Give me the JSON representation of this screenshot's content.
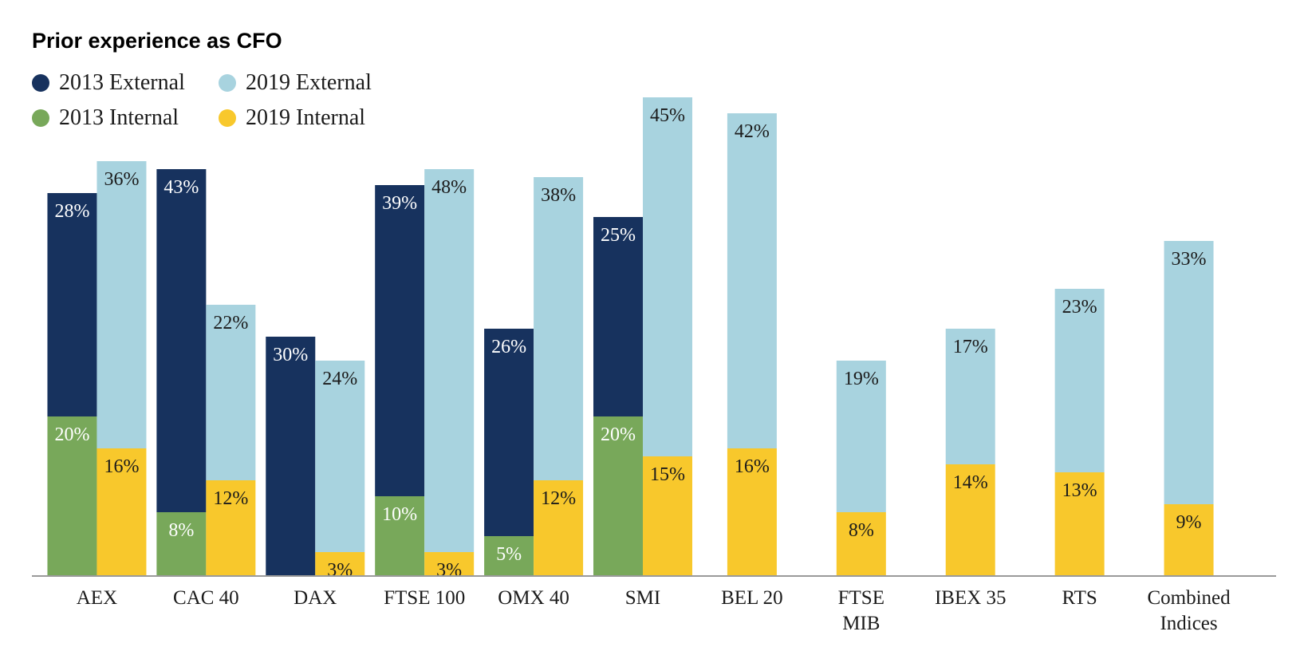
{
  "chart_data": {
    "type": "bar",
    "title": "Prior experience as CFO",
    "xlabel": "",
    "ylabel": "",
    "ylim": [
      0,
      55
    ],
    "grid": false,
    "legend_position": "top-left",
    "categories": [
      [
        "AEX"
      ],
      [
        "CAC 40"
      ],
      [
        "DAX"
      ],
      [
        "FTSE 100"
      ],
      [
        "OMX 40"
      ],
      [
        "SMI"
      ],
      [
        "BEL 20"
      ],
      [
        "FTSE",
        "MIB"
      ],
      [
        "IBEX 35"
      ],
      [
        "RTS"
      ],
      [
        "Combined",
        "Indices"
      ]
    ],
    "stacks": [
      {
        "stack": "2013",
        "layers": [
          "2013 Internal",
          "2013 External"
        ]
      },
      {
        "stack": "2019",
        "layers": [
          "2019 Internal",
          "2019 External"
        ]
      }
    ],
    "series": [
      {
        "name": "2013 External",
        "stack": "2013",
        "color": "#17325e",
        "values": [
          28,
          43,
          30,
          39,
          26,
          25,
          null,
          null,
          null,
          null,
          null
        ],
        "labels": [
          "28%",
          "43%",
          "30%",
          "39%",
          "26%",
          "25%",
          null,
          null,
          null,
          null,
          null
        ]
      },
      {
        "name": "2019 External",
        "stack": "2019",
        "color": "#a8d3df",
        "values": [
          36,
          22,
          24,
          48,
          38,
          45,
          42,
          19,
          17,
          23,
          33
        ],
        "labels": [
          "36%",
          "22%",
          "24%",
          "48%",
          "38%",
          "45%",
          "42%",
          "19%",
          "17%",
          "23%",
          "33%"
        ]
      },
      {
        "name": "2013 Internal",
        "stack": "2013",
        "color": "#78a85a",
        "values": [
          20,
          8,
          0,
          10,
          5,
          20,
          null,
          null,
          null,
          null,
          null
        ],
        "labels": [
          "20%",
          "8%",
          null,
          "10%",
          "5%",
          "20%",
          null,
          null,
          null,
          null,
          null
        ]
      },
      {
        "name": "2019 Internal",
        "stack": "2019",
        "color": "#f8c82c",
        "values": [
          16,
          12,
          3,
          3,
          12,
          15,
          16,
          8,
          14,
          13,
          9
        ],
        "labels": [
          "16%",
          "12%",
          "3%",
          "3%",
          "12%",
          "15%",
          "16%",
          "8%",
          "14%",
          "13%",
          "9%"
        ]
      }
    ],
    "legend": [
      "2013 External",
      "2019 External",
      "2013 Internal",
      "2019 Internal"
    ]
  }
}
